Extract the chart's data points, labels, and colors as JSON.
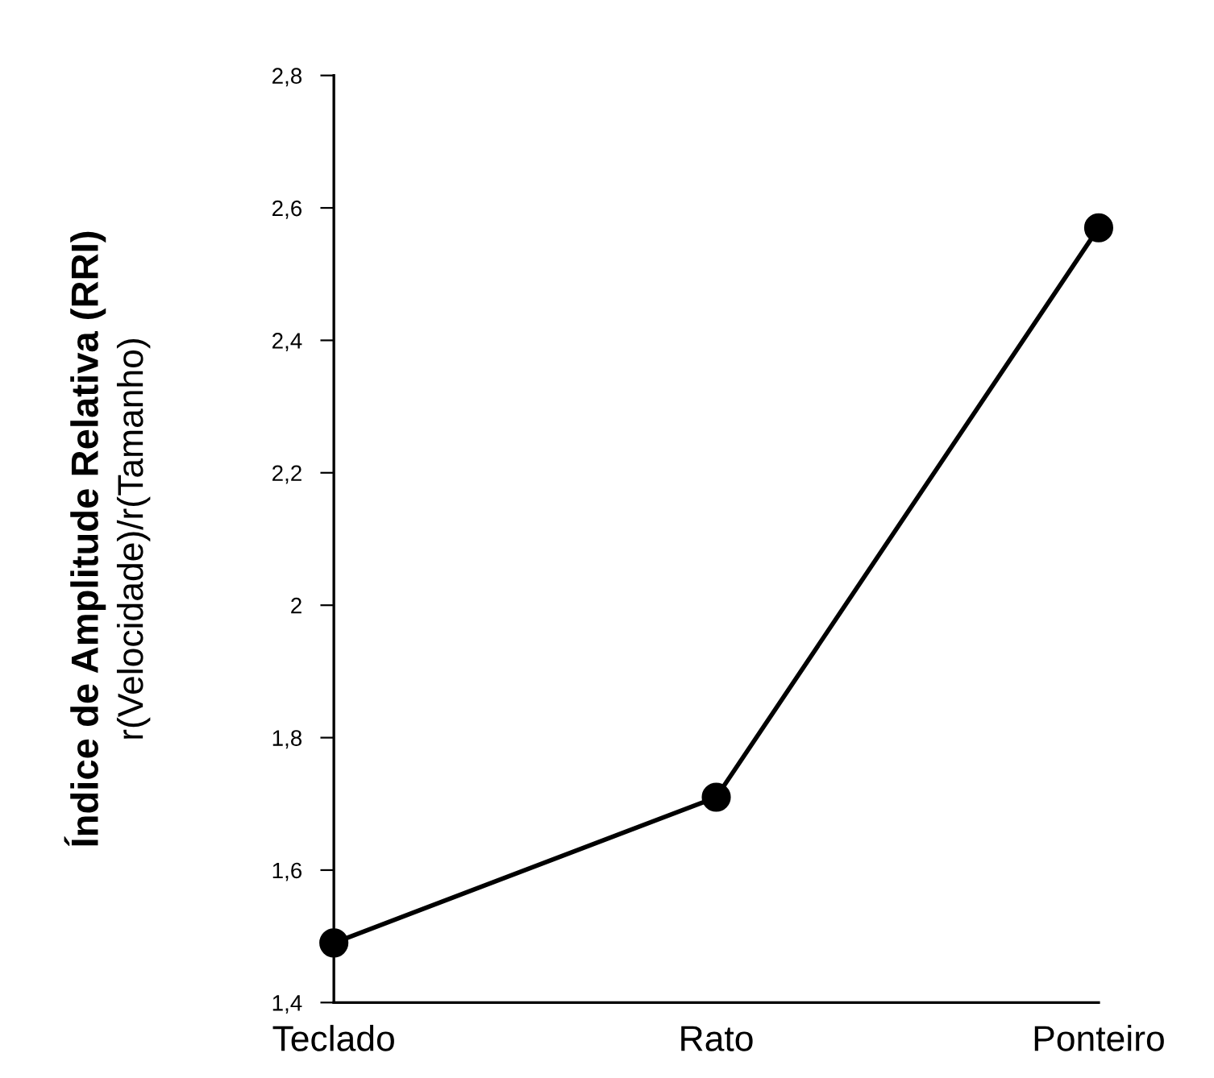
{
  "chart_data": {
    "type": "line",
    "ylabel": "Índice de Amplitude Relativa (RRI)",
    "subtitle": "r(Velocidade)/r(Tamanho)",
    "categories": [
      "Teclado",
      "Rato",
      "Ponteiro"
    ],
    "series": [
      {
        "color": "#000000",
        "values": [
          1.49,
          1.71,
          2.57
        ]
      }
    ],
    "ylim": [
      1.4,
      2.8
    ],
    "yticks": [
      {
        "value": 1.4,
        "label": "1,4"
      },
      {
        "value": 1.6,
        "label": "1,6"
      },
      {
        "value": 1.8,
        "label": "1,8"
      },
      2,
      {
        "value": 2.2,
        "label": "2,2"
      },
      {
        "value": 2.4,
        "label": "2,4"
      },
      {
        "value": 2.6,
        "label": "2,6"
      },
      {
        "value": 2.8,
        "label": "2,8"
      }
    ],
    "marker": "circle",
    "line_style": "solid",
    "grid": false,
    "legend": false
  }
}
